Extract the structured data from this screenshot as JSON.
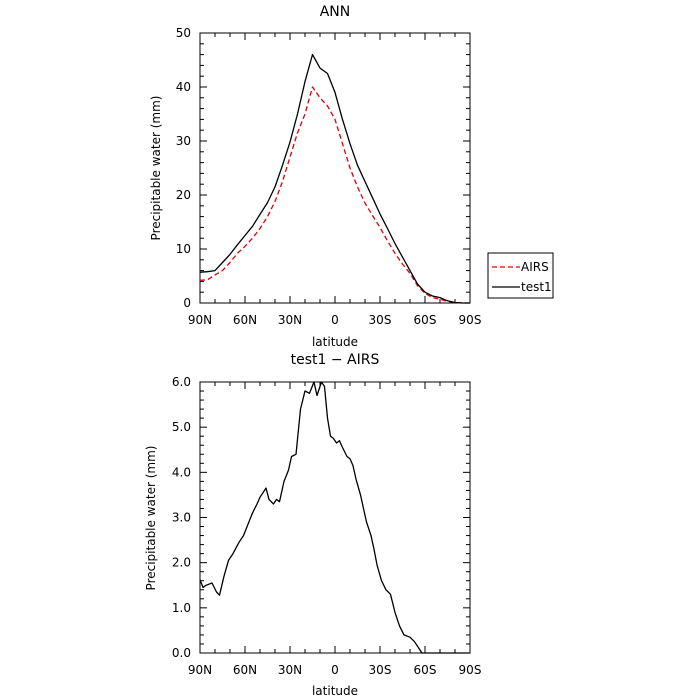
{
  "chart_data": [
    {
      "type": "line",
      "title": "ANN",
      "xlabel": "latitude",
      "ylabel": "Precipitable water (mm)",
      "xticks": [
        "90N",
        "60N",
        "30N",
        "0",
        "30S",
        "60S",
        "90S"
      ],
      "ylim": [
        0,
        50
      ],
      "yticks": [
        "0",
        "10",
        "20",
        "30",
        "40",
        "50"
      ],
      "x": [
        -90,
        -85,
        -80,
        -75,
        -70,
        -65,
        -60,
        -55,
        -50,
        -45,
        -40,
        -35,
        -30,
        -25,
        -20,
        -15,
        -10,
        -5,
        0,
        5,
        10,
        15,
        20,
        25,
        30,
        35,
        40,
        45,
        50,
        55,
        60,
        65,
        70,
        75,
        80,
        85,
        90
      ],
      "series": [
        {
          "name": "AIRS",
          "color": "#e00000",
          "dash": "dashed",
          "values": [
            4.2,
            4.3,
            5.2,
            6.0,
            7.5,
            9.2,
            10.5,
            12.0,
            13.8,
            16.0,
            18.8,
            22.5,
            27.0,
            31.5,
            35.0,
            40.0,
            38.0,
            36.5,
            34.0,
            29.5,
            25.0,
            21.5,
            18.5,
            16.2,
            14.0,
            11.5,
            9.2,
            7.2,
            5.5,
            3.2,
            1.8,
            1.0,
            0.7,
            0.3,
            0.1,
            0.0,
            0.0
          ]
        },
        {
          "name": "test1",
          "color": "#000000",
          "dash": "solid",
          "values": [
            5.7,
            5.8,
            6.0,
            7.5,
            9.0,
            10.8,
            12.5,
            14.2,
            16.4,
            18.6,
            21.5,
            25.5,
            29.8,
            35.0,
            41.0,
            46.0,
            43.5,
            42.5,
            39.0,
            34.0,
            29.5,
            25.5,
            22.5,
            19.5,
            16.5,
            13.8,
            11.0,
            8.5,
            6.0,
            3.5,
            2.0,
            1.3,
            1.0,
            0.4,
            0.1,
            0.0,
            0.0
          ]
        }
      ],
      "legend": "right"
    },
    {
      "type": "line",
      "title": "test1 − AIRS",
      "xlabel": "latitude",
      "ylabel": "Precipitable water (mm)",
      "xticks": [
        "90N",
        "60N",
        "30N",
        "0",
        "30S",
        "60S",
        "90S"
      ],
      "ylim": [
        0,
        6
      ],
      "yticks": [
        "0.0",
        "1.0",
        "2.0",
        "3.0",
        "4.0",
        "5.0",
        "6.0"
      ],
      "x": [
        -90,
        -88,
        -86,
        -82,
        -79,
        -77,
        -74,
        -71,
        -68,
        -64,
        -61,
        -58,
        -55,
        -52,
        -50,
        -46,
        -44,
        -41,
        -39,
        -37,
        -34,
        -31,
        -29,
        -26,
        -23,
        -20,
        -17,
        -14,
        -12,
        -9,
        -7,
        -5,
        -3,
        -1,
        1,
        3,
        5,
        8,
        10,
        12,
        14,
        17,
        19,
        21,
        24,
        26,
        28,
        31,
        34,
        37,
        40,
        43,
        46,
        50,
        53,
        56,
        58,
        60,
        62,
        64,
        66,
        69,
        72,
        75,
        78,
        81,
        84,
        87,
        90
      ],
      "series": [
        {
          "name": "test1 − AIRS",
          "color": "#000000",
          "values": [
            1.62,
            1.45,
            1.5,
            1.55,
            1.35,
            1.28,
            1.7,
            2.05,
            2.2,
            2.45,
            2.6,
            2.85,
            3.1,
            3.3,
            3.45,
            3.65,
            3.4,
            3.3,
            3.4,
            3.35,
            3.8,
            4.05,
            4.35,
            4.4,
            5.4,
            5.8,
            5.75,
            6.0,
            5.7,
            6.0,
            5.9,
            5.2,
            4.8,
            4.75,
            4.65,
            4.7,
            4.55,
            4.35,
            4.3,
            4.15,
            3.85,
            3.5,
            3.2,
            2.9,
            2.6,
            2.3,
            1.95,
            1.6,
            1.4,
            1.3,
            0.9,
            0.6,
            0.4,
            0.35,
            0.25,
            0.1,
            0.0,
            0.0,
            0.0,
            0.0,
            0.0,
            0.0,
            0.0,
            0.0,
            0.0,
            0.0,
            0.0,
            0.0,
            0.0
          ]
        }
      ]
    }
  ]
}
